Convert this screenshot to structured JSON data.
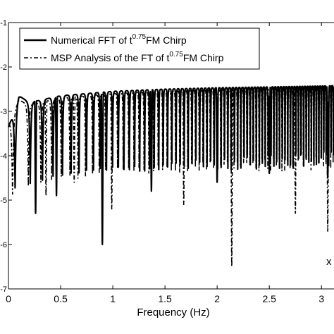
{
  "chart_data": {
    "type": "line",
    "title": "",
    "xlabel": "Frequency (Hz)",
    "ylabel": "",
    "x_corner_label": "x",
    "xlim": [
      0,
      3.12
    ],
    "ylim": [
      -7,
      -1
    ],
    "x_ticks": [
      0,
      0.5,
      1,
      1.5,
      2,
      2.5,
      3
    ],
    "x_tick_labels": [
      "0",
      "0.5",
      "1",
      "1.5",
      "2",
      "2.5",
      "3"
    ],
    "y_ticks": [
      -7,
      -6,
      -5,
      -4,
      -3,
      -2,
      -1
    ],
    "y_tick_labels": [
      "-7",
      "-6",
      "-5",
      "-4",
      "-3",
      "-2",
      "-1"
    ],
    "grid": false,
    "legend_position": "top-left",
    "series": [
      {
        "name_parts": [
          "Numerical FFT of t",
          "0.75",
          "FM Chirp"
        ],
        "style": "solid",
        "peak_envelope": {
          "x": [
            0.0,
            0.1,
            0.2,
            0.5,
            1.0,
            1.5,
            2.0,
            2.5,
            3.0,
            3.12
          ],
          "y": [
            -3.0,
            -2.3,
            -2.45,
            -2.3,
            -2.2,
            -2.15,
            -2.12,
            -2.1,
            -2.08,
            -2.07
          ]
        },
        "dips": [
          {
            "x": 0.26,
            "y": -5.3
          },
          {
            "x": 0.46,
            "y": -4.9
          },
          {
            "x": 0.9,
            "y": -6.0
          },
          {
            "x": 1.37,
            "y": -4.8
          },
          {
            "x": 2.0,
            "y": -4.6
          },
          {
            "x": 2.5,
            "y": -4.4
          },
          {
            "x": 3.06,
            "y": -4.5
          }
        ]
      },
      {
        "name_parts": [
          "MSP Analysis of the FT of t",
          "0.75",
          "FM Chirp"
        ],
        "style": "dashdot",
        "peak_envelope": {
          "x": [
            0.0,
            0.1,
            0.2,
            0.5,
            1.0,
            1.5,
            2.0,
            2.5,
            3.0,
            3.12
          ],
          "y": [
            -2.9,
            -2.4,
            -2.5,
            -2.35,
            -2.25,
            -2.2,
            -2.17,
            -2.15,
            -2.12,
            -2.1
          ]
        },
        "dips": [
          {
            "x": 0.19,
            "y": -4.2
          },
          {
            "x": 0.36,
            "y": -4.9
          },
          {
            "x": 0.63,
            "y": -4.6
          },
          {
            "x": 0.99,
            "y": -5.2
          },
          {
            "x": 1.68,
            "y": -5.1
          },
          {
            "x": 2.14,
            "y": -6.5
          },
          {
            "x": 2.75,
            "y": -5.3
          },
          {
            "x": 3.06,
            "y": -5.7
          }
        ]
      }
    ]
  }
}
